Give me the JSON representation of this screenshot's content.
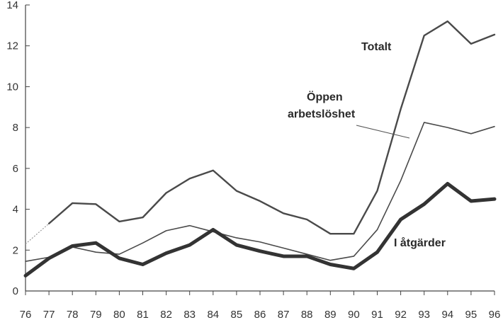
{
  "chart_data": {
    "type": "line",
    "title": "",
    "xlabel": "",
    "ylabel": "",
    "ylim": [
      0,
      14
    ],
    "xlim": [
      76,
      96
    ],
    "grid": false,
    "x": [
      "76",
      "77",
      "78",
      "79",
      "80",
      "81",
      "82",
      "83",
      "84",
      "85",
      "86",
      "87",
      "88",
      "89",
      "90",
      "91",
      "92",
      "93",
      "94",
      "95",
      "96"
    ],
    "y_ticks": [
      0,
      2,
      4,
      6,
      8,
      10,
      12,
      14
    ],
    "series": [
      {
        "name": "Totalt",
        "color": "#4a4a4a",
        "values": [
          2.3,
          3.3,
          4.3,
          4.25,
          3.4,
          3.6,
          4.8,
          5.5,
          5.9,
          4.9,
          4.4,
          3.8,
          3.5,
          2.8,
          2.8,
          4.9,
          8.9,
          12.5,
          13.2,
          12.1,
          12.55
        ]
      },
      {
        "name": "Öppen arbetslöshet",
        "color": "#4a4a4a",
        "values": [
          1.45,
          1.65,
          2.15,
          1.9,
          1.8,
          2.35,
          2.95,
          3.2,
          2.9,
          2.6,
          2.4,
          2.1,
          1.8,
          1.5,
          1.7,
          3.0,
          5.4,
          8.25,
          8.0,
          7.7,
          8.05
        ]
      },
      {
        "name": "I åtgärder",
        "color": "#333333",
        "values": [
          0.75,
          1.6,
          2.2,
          2.35,
          1.6,
          1.3,
          1.85,
          2.25,
          3.0,
          2.25,
          1.95,
          1.7,
          1.7,
          1.3,
          1.1,
          1.9,
          3.5,
          4.25,
          5.25,
          4.4,
          4.5
        ]
      }
    ],
    "annotations": [
      {
        "text": "Totalt"
      },
      {
        "text": "Öppen"
      },
      {
        "text": "arbetslöshet"
      },
      {
        "text": "I åtgärder"
      }
    ]
  }
}
